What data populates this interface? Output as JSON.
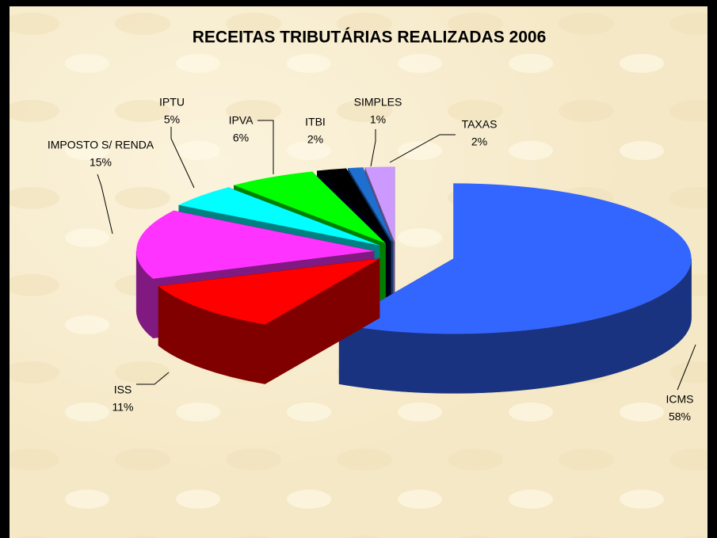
{
  "chart_data": {
    "type": "pie",
    "title": "RECEITAS TRIBUTÁRIAS REALIZADAS 2006",
    "categories": [
      "ICMS",
      "ISS",
      "IMPOSTO S/ RENDA",
      "IPTU",
      "IPVA",
      "ITBI",
      "SIMPLES",
      "TAXAS"
    ],
    "values": [
      58,
      11,
      15,
      5,
      6,
      2,
      1,
      2
    ],
    "value_labels": [
      "58%",
      "11%",
      "15%",
      "5%",
      "6%",
      "2%",
      "1%",
      "2%"
    ],
    "colors": [
      "#3366ff",
      "#ff0000",
      "#ff33ff",
      "#00ffff",
      "#00ff00",
      "#000000",
      "#1f6fd0",
      "#cc99ff"
    ]
  }
}
